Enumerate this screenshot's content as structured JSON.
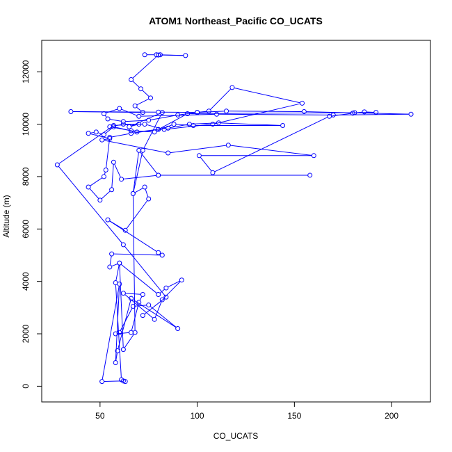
{
  "chart_data": {
    "type": "line",
    "title": "ATOM1 Northeast_Pacific CO_UCATS",
    "xlabel": "CO_UCATS",
    "ylabel": "Altitude (m)",
    "xlim": [
      20,
      220
    ],
    "ylim": [
      -600,
      13200
    ],
    "xticks": [
      50,
      100,
      150,
      200
    ],
    "yticks": [
      0,
      2000,
      4000,
      6000,
      8000,
      10000,
      12000
    ],
    "grid": false,
    "legend": "none",
    "colors": {
      "series": "#0000ff",
      "axis": "#000000",
      "background": "#ffffff"
    },
    "series": [
      {
        "points": [
          [
            73,
            12650
          ],
          [
            79,
            12650
          ],
          [
            81,
            12650
          ],
          [
            94,
            12620
          ],
          [
            80,
            12640
          ],
          [
            66,
            11700
          ],
          [
            71,
            11350
          ],
          [
            76,
            11000
          ],
          [
            68,
            10700
          ],
          [
            72,
            10450
          ],
          [
            35,
            10480
          ],
          [
            80,
            10460
          ],
          [
            100,
            10450
          ],
          [
            115,
            10500
          ],
          [
            155,
            10480
          ],
          [
            210,
            10380
          ],
          [
            170,
            10350
          ],
          [
            110,
            10380
          ],
          [
            70,
            10300
          ],
          [
            60,
            10600
          ],
          [
            52,
            10400
          ],
          [
            54,
            10200
          ],
          [
            62,
            10100
          ],
          [
            75,
            10150
          ],
          [
            90,
            10350
          ],
          [
            100,
            10450
          ],
          [
            106,
            10500
          ],
          [
            118,
            11400
          ],
          [
            154,
            10800
          ],
          [
            108,
            10000
          ],
          [
            83,
            9800
          ],
          [
            73,
            10000
          ],
          [
            62,
            10000
          ],
          [
            55,
            9900
          ],
          [
            66,
            9750
          ],
          [
            78,
            9700
          ],
          [
            88,
            10000
          ],
          [
            98,
            9950
          ],
          [
            144,
            9950
          ],
          [
            111,
            10050
          ],
          [
            96,
            10000
          ],
          [
            85,
            9850
          ],
          [
            69,
            9700
          ],
          [
            57,
            9900
          ],
          [
            52,
            9600
          ],
          [
            48,
            9700
          ],
          [
            44,
            9650
          ],
          [
            55,
            9450
          ],
          [
            51,
            9400
          ],
          [
            85,
            8900
          ],
          [
            116,
            9200
          ],
          [
            160,
            8800
          ],
          [
            101,
            8800
          ],
          [
            108,
            8150
          ],
          [
            168,
            10300
          ],
          [
            180,
            10420
          ],
          [
            186,
            10470
          ],
          [
            192,
            10450
          ],
          [
            181,
            10440
          ],
          [
            95,
            10400
          ],
          [
            80,
            9800
          ],
          [
            66,
            9650
          ],
          [
            55,
            9500
          ],
          [
            53,
            8250
          ],
          [
            52,
            8000
          ],
          [
            44,
            7600
          ],
          [
            50,
            7100
          ],
          [
            56,
            7500
          ],
          [
            57,
            8550
          ],
          [
            61,
            7900
          ],
          [
            80,
            8050
          ],
          [
            158,
            8050
          ],
          [
            80,
            8050
          ],
          [
            70,
            9000
          ],
          [
            67,
            7350
          ],
          [
            73,
            7600
          ],
          [
            75,
            7150
          ],
          [
            63,
            5950
          ],
          [
            54,
            6350
          ],
          [
            80,
            5100
          ],
          [
            82,
            5000
          ],
          [
            56,
            5050
          ],
          [
            55,
            4550
          ],
          [
            60,
            4700
          ],
          [
            80,
            3500
          ],
          [
            84,
            3750
          ],
          [
            92,
            4050
          ],
          [
            82,
            3300
          ],
          [
            78,
            2550
          ],
          [
            62,
            3550
          ],
          [
            72,
            3500
          ],
          [
            70,
            3200
          ],
          [
            66,
            2050
          ],
          [
            58,
            2000
          ],
          [
            60,
            2050
          ],
          [
            67,
            3050
          ],
          [
            75,
            3100
          ],
          [
            90,
            2200
          ],
          [
            66,
            3350
          ],
          [
            59,
            1350
          ],
          [
            58,
            900
          ],
          [
            60,
            3900
          ],
          [
            51,
            180
          ],
          [
            62,
            200
          ],
          [
            63,
            180
          ],
          [
            61,
            250
          ],
          [
            58,
            3950
          ],
          [
            60,
            4700
          ],
          [
            62,
            1400
          ],
          [
            68,
            2050
          ],
          [
            67,
            7350
          ],
          [
            72,
            9000
          ],
          [
            82,
            10450
          ],
          [
            65,
            9900
          ],
          [
            70,
            10000
          ],
          [
            57,
            9950
          ],
          [
            28,
            8450
          ],
          [
            62,
            5400
          ],
          [
            84,
            3400
          ],
          [
            72,
            2700
          ]
        ]
      }
    ]
  }
}
